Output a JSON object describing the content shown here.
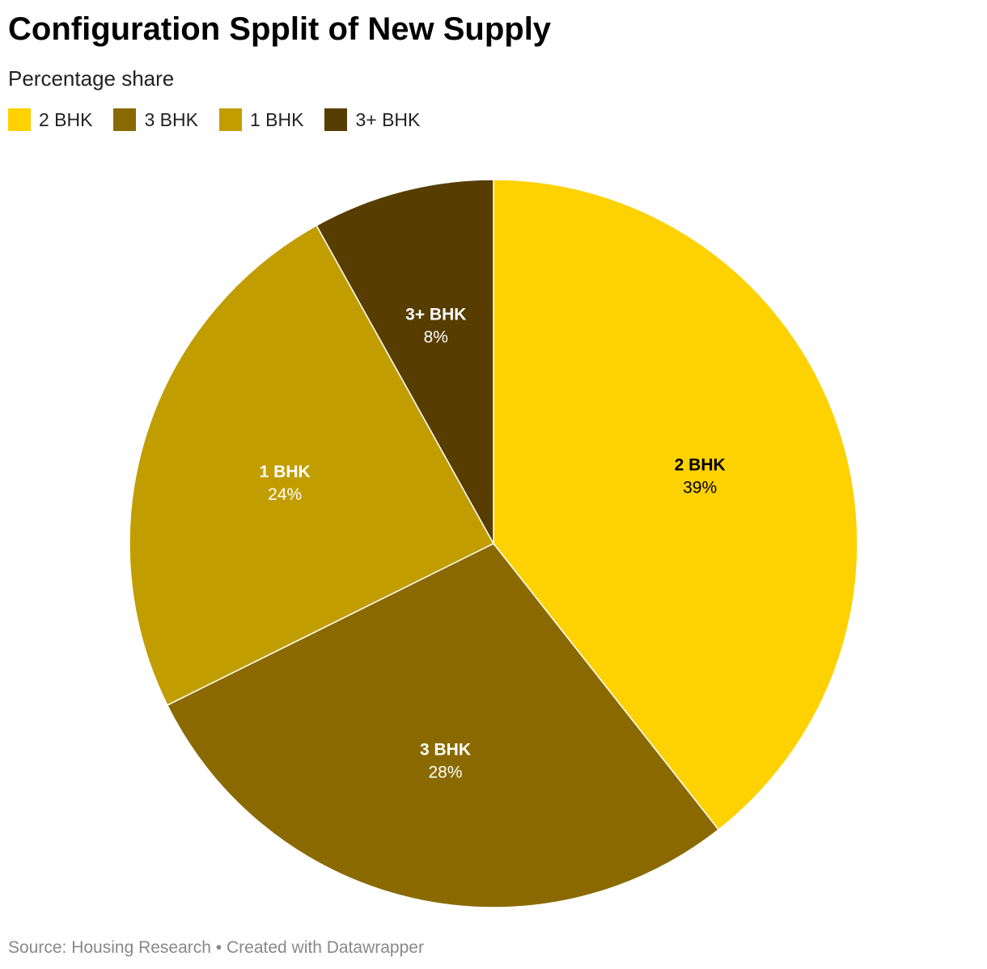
{
  "chart_data": {
    "type": "pie",
    "title": "Configuration Spplit of New Supply",
    "subtitle": "Percentage share",
    "legend_position": "top-left",
    "slices": [
      {
        "label": "2 BHK",
        "value": 39,
        "value_label": "39%",
        "color": "#fed101",
        "text_color": "#000000"
      },
      {
        "label": "3 BHK",
        "value": 28,
        "value_label": "28%",
        "color": "#8a6a00",
        "text_color": "#ffffff"
      },
      {
        "label": "1 BHK",
        "value": 24,
        "value_label": "24%",
        "color": "#c29d00",
        "text_color": "#ffffff"
      },
      {
        "label": "3+ BHK",
        "value": 8,
        "value_label": "8%",
        "color": "#573d00",
        "text_color": "#ffffff"
      }
    ],
    "source": "Source: Housing Research • Created with Datawrapper"
  }
}
